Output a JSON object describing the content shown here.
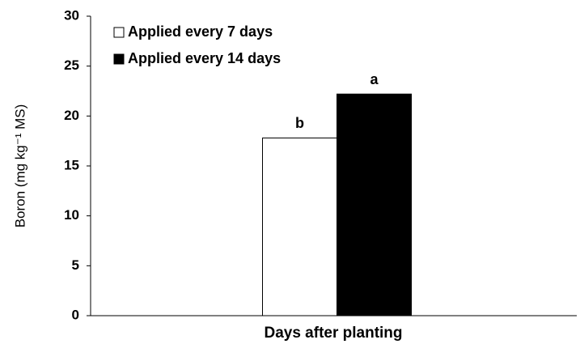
{
  "chart_data": {
    "type": "bar",
    "y_label": "Boron (mg kg⁻¹ MS)",
    "x_label": "Days after planting",
    "categories": [
      null
    ],
    "series": [
      {
        "name": "Applied every 7 days",
        "color": "#ffffff",
        "values": [
          17.8
        ],
        "annotation": "b"
      },
      {
        "name": "Applied every 14 days",
        "color": "#000000",
        "values": [
          22.2
        ],
        "annotation": "a"
      }
    ],
    "ylim": [
      0,
      30
    ],
    "yticks": [
      0,
      5,
      10,
      15,
      20,
      25,
      30
    ],
    "grid": false,
    "legend": "upper left"
  }
}
